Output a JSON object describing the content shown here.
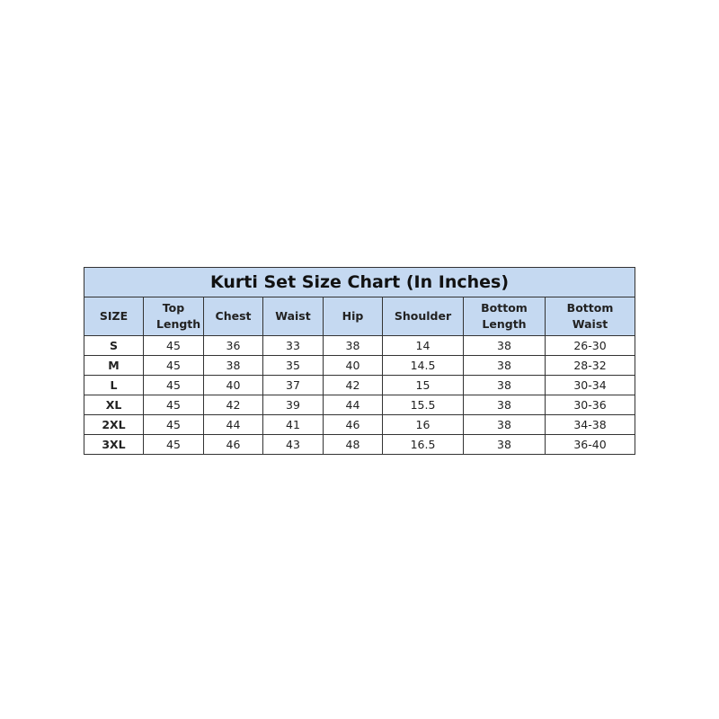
{
  "title": "Kurti Set Size Chart (In Inches)",
  "header_color": "#c5d9f1",
  "columns": [
    "SIZE",
    "Top Length",
    "Chest",
    "Waist",
    "Hip",
    "Shoulder",
    "Bottom Length",
    "Bottom Waist"
  ],
  "rows": [
    [
      "S",
      "45",
      "36",
      "33",
      "38",
      "14",
      "38",
      "26-30"
    ],
    [
      "M",
      "45",
      "38",
      "35",
      "40",
      "14.5",
      "38",
      "28-32"
    ],
    [
      "L",
      "45",
      "40",
      "37",
      "42",
      "15",
      "38",
      "30-34"
    ],
    [
      "XL",
      "45",
      "42",
      "39",
      "44",
      "15.5",
      "38",
      "30-36"
    ],
    [
      "2XL",
      "45",
      "44",
      "41",
      "46",
      "16",
      "38",
      "34-38"
    ],
    [
      "3XL",
      "45",
      "46",
      "43",
      "48",
      "16.5",
      "38",
      "36-40"
    ]
  ]
}
